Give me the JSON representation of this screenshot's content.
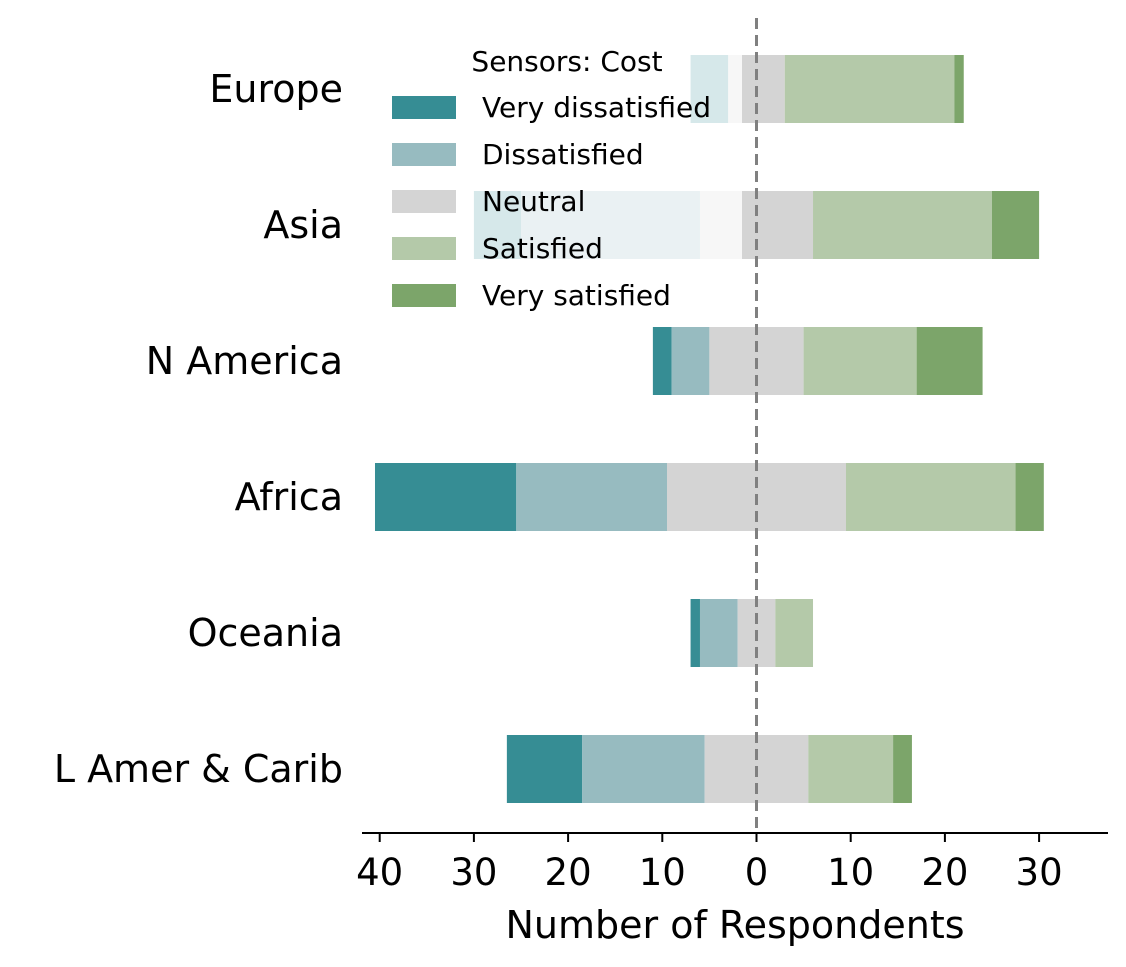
{
  "chart_data": {
    "type": "bar",
    "orientation": "horizontal",
    "layout": "diverging-stacked",
    "categories": [
      "Europe",
      "Asia",
      "N America",
      "Africa",
      "Oceania",
      "L Amer & Carib"
    ],
    "series": [
      {
        "name": "Very dissatisfied",
        "color": "#368d94",
        "values": [
          4,
          5,
          2,
          15,
          1,
          8
        ]
      },
      {
        "name": "Dissatisfied",
        "color": "#97bbc0",
        "values": [
          0,
          19,
          4,
          16,
          4,
          13
        ]
      },
      {
        "name": "Neutral",
        "color": "#d4d4d4",
        "values": [
          6,
          12,
          10,
          19,
          4,
          11
        ]
      },
      {
        "name": "Satisfied",
        "color": "#b4c9a9",
        "values": [
          18,
          19,
          12,
          18,
          4,
          9
        ]
      },
      {
        "name": "Very satisfied",
        "color": "#7ca56a",
        "values": [
          1,
          5,
          7,
          3,
          0,
          2
        ]
      }
    ],
    "neutral_split": "centered",
    "legend_title": "Sensors: Cost",
    "legend_position": "top-center",
    "xlabel": "Number of Respondents",
    "ylabel": "",
    "xlim": [
      -42,
      37
    ],
    "xticks": [
      -40,
      -30,
      -20,
      -10,
      0,
      10,
      20,
      30
    ],
    "xtick_labels": [
      "40",
      "30",
      "20",
      "10",
      "0",
      "10",
      "20",
      "30"
    ],
    "center_line": {
      "x": 0,
      "style": "dashed",
      "color": "#808080"
    },
    "grid": false
  }
}
